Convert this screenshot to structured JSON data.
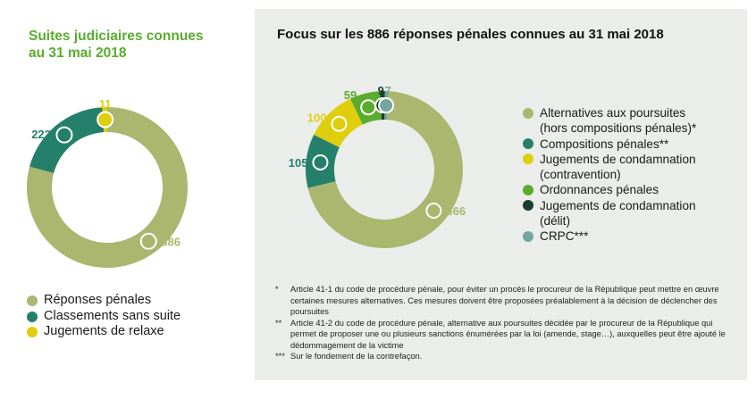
{
  "colors": {
    "accent_title": "#5aac2e",
    "panel_bg": "#ebedea",
    "olive": "#abb66e",
    "teal": "#24806a",
    "yellow": "#dfce0c",
    "green": "#5aac2e",
    "dark": "#1c3c32",
    "grey_teal": "#73a6a0"
  },
  "left_chart": {
    "title_line1": "Suites judiciaires connues",
    "title_line2": "au 31 mai 2018"
  },
  "right_chart": {
    "title": "Focus sur les 886 réponses pénales connues au 31 mai 2018"
  },
  "chart_data": [
    {
      "type": "pie",
      "variant": "donut",
      "title": "Suites judiciaires connues au 31 mai 2018",
      "categories": [
        "Réponses pénales",
        "Classements sans suite",
        "Jugements de relaxe"
      ],
      "values": [
        886,
        222,
        11
      ],
      "value_labels": [
        "886",
        "222",
        "11"
      ],
      "colors": [
        "#abb66e",
        "#24806a",
        "#dfce0c"
      ],
      "legend": [
        {
          "label_lines": [
            "Réponses pénales"
          ],
          "color": "#abb66e"
        },
        {
          "label_lines": [
            "Classements sans suite"
          ],
          "color": "#24806a"
        },
        {
          "label_lines": [
            "Jugements de relaxe"
          ],
          "color": "#dfce0c"
        }
      ]
    },
    {
      "type": "pie",
      "variant": "donut",
      "title": "Focus sur les 886 réponses pénales connues au 31 mai 2018",
      "categories": [
        "Alternatives aux poursuites (hors compositions pénales)*",
        "Compositions pénales**",
        "Jugements de condamnation (contravention)",
        "Ordonnances pénales",
        "Jugements de condamnation (délit)",
        "CRPC***"
      ],
      "values": [
        666,
        105,
        100,
        59,
        9,
        7
      ],
      "value_labels": [
        "666",
        "105",
        "100",
        "59",
        "9",
        "7"
      ],
      "colors": [
        "#abb66e",
        "#24806a",
        "#dfce0c",
        "#5aac2e",
        "#1c3c32",
        "#73a6a0"
      ],
      "legend": [
        {
          "label_lines": [
            "Alternatives aux poursuites",
            "(hors compositions pénales)*"
          ],
          "color": "#abb66e"
        },
        {
          "label_lines": [
            "Compositions pénales**"
          ],
          "color": "#24806a"
        },
        {
          "label_lines": [
            "Jugements de condamnation",
            "(contravention)"
          ],
          "color": "#dfce0c"
        },
        {
          "label_lines": [
            "Ordonnances pénales"
          ],
          "color": "#5aac2e"
        },
        {
          "label_lines": [
            "Jugements de condamnation",
            "(délit)"
          ],
          "color": "#1c3c32"
        },
        {
          "label_lines": [
            "CRPC***"
          ],
          "color": "#73a6a0"
        }
      ]
    }
  ],
  "footnotes": [
    {
      "marker": "*",
      "text": "Article 41-1 du code de procédure pénale, pour éviter un procès le procureur de la République peut mettre en œuvre certaines mesures alternatives. Ces mesures doivent être proposées préalablement à la décision de déclencher des poursuites"
    },
    {
      "marker": "**",
      "text": "Article 41-2 du code de procédure pénale, alternative aux poursuites décidée par le procureur de la République qui permet de proposer une ou plusieurs sanctions énumérées par la loi (amende, stage…), auxquelles peut être ajouté le dédommagement de la victime"
    },
    {
      "marker": "***",
      "text": "Sur le fondement de la contrefaçon."
    }
  ]
}
